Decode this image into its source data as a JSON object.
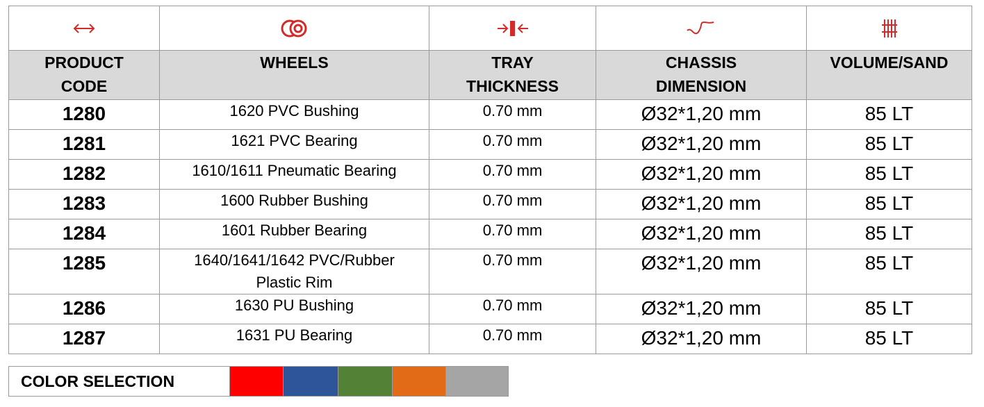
{
  "header": {
    "columns": [
      "PRODUCT CODE",
      "WHEELS",
      "TRAY THICKNESS",
      "CHASSIS DIMENSION",
      "VOLUME/SAND"
    ]
  },
  "table": {
    "rows": [
      [
        "1280",
        "1620 PVC Bushing",
        "0.70 mm",
        "Ø32*1,20 mm",
        "85 LT"
      ],
      [
        "1281",
        "1621 PVC Bearing",
        "0.70 mm",
        "Ø32*1,20 mm",
        "85 LT"
      ],
      [
        "1282",
        "1610/1611 Pneumatic Bearing",
        "0.70 mm",
        "Ø32*1,20 mm",
        "85 LT"
      ],
      [
        "1283",
        "1600 Rubber Bushing",
        "0.70 mm",
        "Ø32*1,20 mm",
        "85 LT"
      ],
      [
        "1284",
        "1601 Rubber Bearing",
        "0.70 mm",
        "Ø32*1,20 mm",
        "85 LT"
      ],
      [
        "1285",
        "1640/1641/1642 PVC/Rubber Plastic Rim",
        "0.70 mm",
        "Ø32*1,20 mm",
        "85 LT"
      ],
      [
        "1286",
        "1630 PU Bushing",
        "0.70 mm",
        "Ø32*1,20 mm",
        "85 LT"
      ],
      [
        "1287",
        "1631 PU Bearing",
        "0.70 mm",
        "Ø32*1,20 mm",
        "85 LT"
      ]
    ]
  },
  "color_selection": {
    "label": "COLOR SELECTION",
    "colors": [
      "#ff0000",
      "#2e5597",
      "#538135",
      "#e26b17",
      "#a5a5a5"
    ]
  }
}
